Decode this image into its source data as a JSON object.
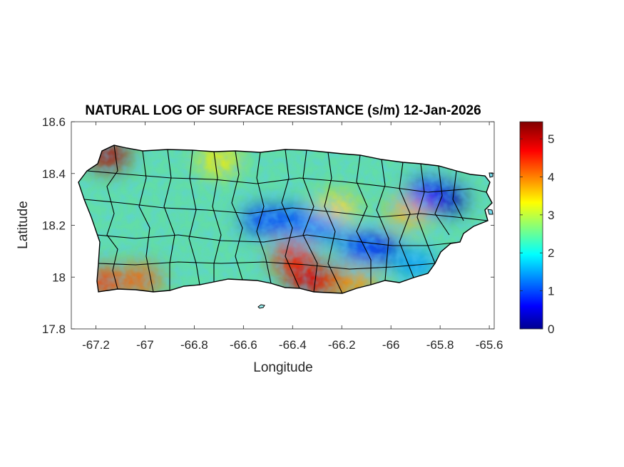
{
  "title": "NATURAL LOG OF SURFACE RESISTANCE (s/m) 12-Jan-2026",
  "xlabel": "Longitude",
  "ylabel": "Latitude",
  "xticks": [
    "-67.2",
    "-67",
    "-66.8",
    "-66.6",
    "-66.4",
    "-66.2",
    "-66",
    "-65.8",
    "-65.6"
  ],
  "yticks": [
    "17.8",
    "18",
    "18.2",
    "18.4",
    "18.6"
  ],
  "colorbar": {
    "colormap": "jet",
    "ticks": [
      "0",
      "1",
      "2",
      "3",
      "4",
      "5"
    ],
    "range": [
      0,
      5.45
    ]
  },
  "colors": {
    "boundary": "#000000",
    "axes": "#262626",
    "background": "#ffffff"
  },
  "map_extent": {
    "lon": [
      -67.3,
      -65.58
    ],
    "lat": [
      17.8,
      18.6
    ]
  },
  "hotspots": [
    {
      "lon": -67.15,
      "lat": 18.47,
      "value": 5.2
    },
    {
      "lon": -67.17,
      "lat": 17.98,
      "value": 4.5
    },
    {
      "lon": -67.02,
      "lat": 17.99,
      "value": 4.3
    },
    {
      "lon": -66.4,
      "lat": 18.07,
      "value": 4.6
    },
    {
      "lon": -66.34,
      "lat": 17.99,
      "value": 5.0
    },
    {
      "lon": -66.25,
      "lat": 17.98,
      "value": 4.9
    },
    {
      "lon": -66.14,
      "lat": 17.96,
      "value": 4.0
    },
    {
      "lon": -65.93,
      "lat": 18.25,
      "value": 3.8
    },
    {
      "lon": -66.22,
      "lat": 18.27,
      "value": 3.6
    },
    {
      "lon": -66.7,
      "lat": 18.45,
      "value": 3.5
    },
    {
      "lon": -65.78,
      "lat": 18.3,
      "value": 0.2
    },
    {
      "lon": -65.85,
      "lat": 18.32,
      "value": 0.8
    },
    {
      "lon": -66.05,
      "lat": 18.11,
      "value": 0.5
    },
    {
      "lon": -66.12,
      "lat": 18.12,
      "value": 1.0
    },
    {
      "lon": -66.4,
      "lat": 18.22,
      "value": 1.1
    },
    {
      "lon": -66.52,
      "lat": 18.22,
      "value": 1.0
    },
    {
      "lon": -66.28,
      "lat": 18.19,
      "value": 1.3
    },
    {
      "lon": -65.9,
      "lat": 18.05,
      "value": 1.5
    }
  ]
}
